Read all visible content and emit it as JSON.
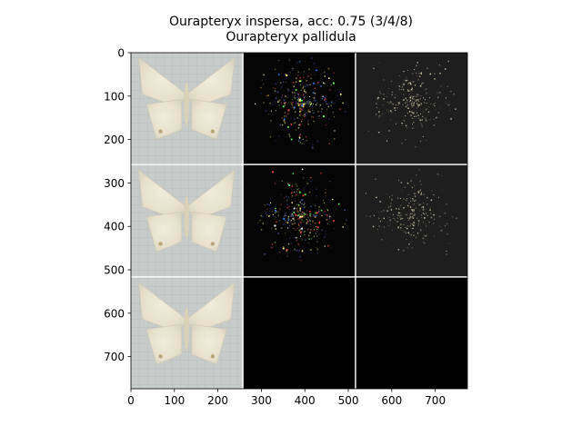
{
  "chart_data": {
    "type": "image",
    "title": "Ourapteryx inspersa, acc: 0.75 (3/4/8)",
    "subtitle": "Ourapteryx pallidula",
    "xlim": [
      0,
      774
    ],
    "ylim": [
      774,
      0
    ],
    "x_ticks": [
      0,
      100,
      200,
      300,
      400,
      500,
      600,
      700
    ],
    "y_ticks": [
      0,
      100,
      200,
      300,
      400,
      500,
      600,
      700
    ],
    "grid": false,
    "tile_size": 256,
    "tile_gap": 3,
    "tiles": [
      {
        "row": 0,
        "col": 0,
        "content": "photo"
      },
      {
        "row": 0,
        "col": 1,
        "content": "saliency-color"
      },
      {
        "row": 0,
        "col": 2,
        "content": "saliency-mask"
      },
      {
        "row": 1,
        "col": 0,
        "content": "photo"
      },
      {
        "row": 1,
        "col": 1,
        "content": "saliency-color"
      },
      {
        "row": 1,
        "col": 2,
        "content": "saliency-mask"
      },
      {
        "row": 2,
        "col": 0,
        "content": "photo"
      },
      {
        "row": 2,
        "col": 1,
        "content": "empty"
      },
      {
        "row": 2,
        "col": 2,
        "content": "empty"
      }
    ]
  }
}
